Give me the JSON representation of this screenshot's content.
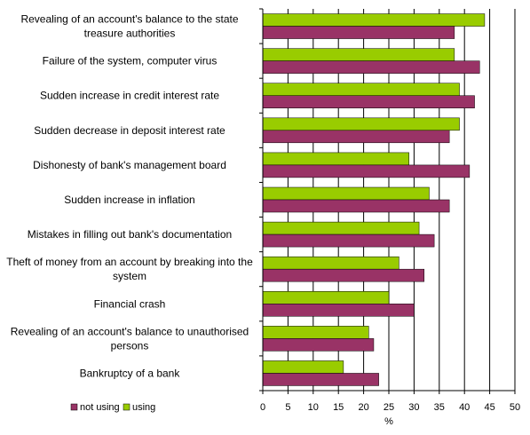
{
  "chart_data": {
    "type": "bar",
    "orientation": "horizontal",
    "title": "",
    "xlabel": "%",
    "ylabel": "",
    "xlim": [
      0,
      50
    ],
    "xticks": [
      "0",
      "5",
      "10",
      "15",
      "20",
      "25",
      "30",
      "35",
      "40",
      "45",
      "50"
    ],
    "grid": "vertical",
    "legend_position": "bottom-left",
    "categories": [
      "Revealing of an account's balance to the state treasure authorities",
      "Failure of the system, computer virus",
      "Sudden increase in credit interest rate",
      "Sudden decrease in deposit interest rate",
      "Dishonesty of bank's management board",
      "Sudden increase in inflation",
      "Mistakes in filling out bank's documentation",
      "Theft of money from an account by breaking into the system",
      "Financial crash",
      "Revealing of an account's balance to unauthorised persons",
      "Bankruptcy of a bank"
    ],
    "category_lines": [
      [
        "Revealing of an account's balance to the state",
        "treasure authorities"
      ],
      [
        "Failure of the system, computer virus"
      ],
      [
        "Sudden increase in credit interest rate"
      ],
      [
        "Sudden decrease in deposit interest rate"
      ],
      [
        "Dishonesty of bank's management board"
      ],
      [
        "Sudden increase in inflation"
      ],
      [
        "Mistakes in filling out bank's documentation"
      ],
      [
        "Theft of money from an account by breaking into the",
        "system"
      ],
      [
        "Financial crash"
      ],
      [
        "Revealing of an account's balance to unauthorised",
        "persons"
      ],
      [
        "Bankruptcy of a bank"
      ]
    ],
    "series": [
      {
        "name": "using",
        "color": "#99cc00",
        "values": [
          44,
          38,
          39,
          39,
          29,
          33,
          31,
          27,
          25,
          21,
          16
        ]
      },
      {
        "name": "not using",
        "color": "#993366",
        "values": [
          38,
          43,
          42,
          37,
          41,
          37,
          34,
          32,
          30,
          22,
          23
        ]
      }
    ],
    "legend": [
      "not using",
      "using"
    ]
  }
}
